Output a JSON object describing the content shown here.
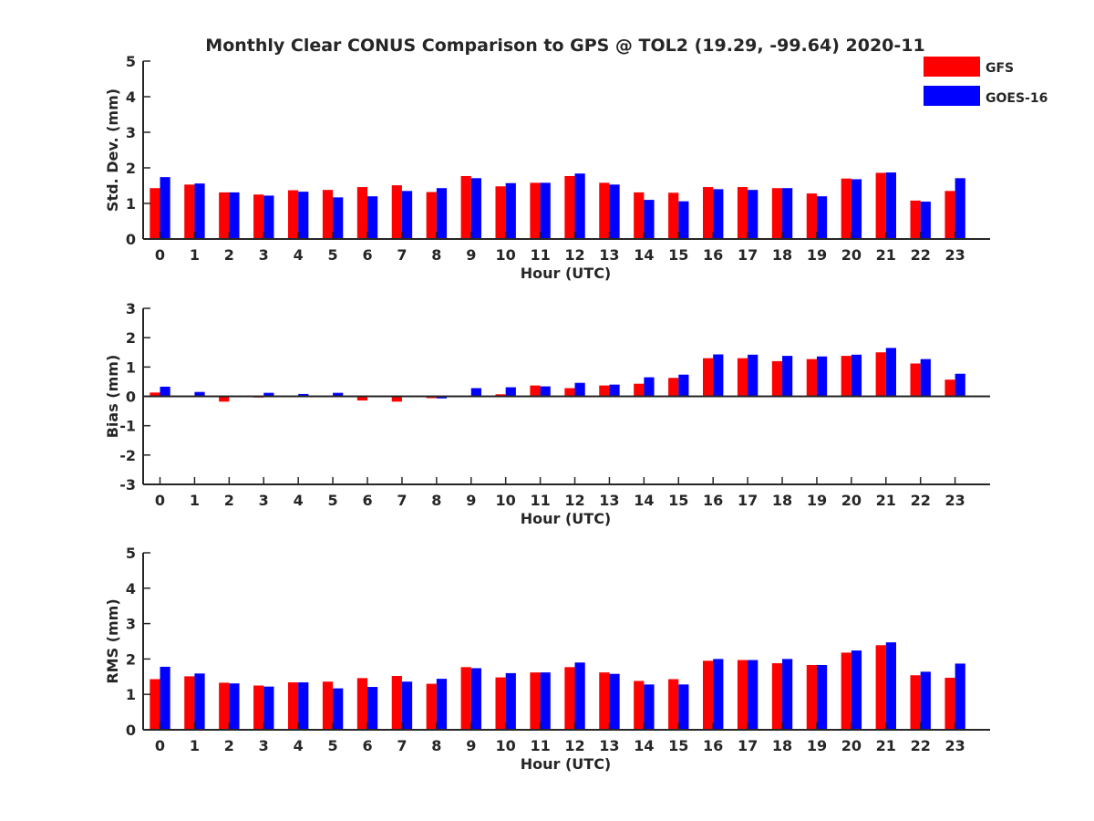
{
  "title": "Monthly Clear CONUS Comparison to GPS @ TOL2 (19.29, -99.64) 2020-11",
  "colors": {
    "GFS": "#ff0000",
    "GOES-16": "#0000ff",
    "axis": "#262626"
  },
  "legend": [
    {
      "name": "GFS",
      "color": "#ff0000"
    },
    {
      "name": "GOES-16",
      "color": "#0000ff"
    }
  ],
  "chart_data": [
    {
      "type": "bar",
      "ylabel": "Std. Dev. (mm)",
      "xlabel": "Hour (UTC)",
      "ylim": [
        0,
        5
      ],
      "yticks": [
        0,
        1,
        2,
        3,
        4,
        5
      ],
      "categories": [
        "0",
        "1",
        "2",
        "3",
        "4",
        "5",
        "6",
        "7",
        "8",
        "9",
        "10",
        "11",
        "12",
        "13",
        "14",
        "15",
        "16",
        "17",
        "18",
        "19",
        "20",
        "21",
        "22",
        "23"
      ],
      "series": [
        {
          "name": "GFS",
          "values": [
            1.43,
            1.53,
            1.31,
            1.25,
            1.37,
            1.38,
            1.46,
            1.51,
            1.32,
            1.77,
            1.48,
            1.58,
            1.77,
            1.58,
            1.31,
            1.3,
            1.46,
            1.46,
            1.43,
            1.28,
            1.7,
            1.86,
            1.08,
            1.35
          ]
        },
        {
          "name": "GOES-16",
          "values": [
            1.74,
            1.56,
            1.31,
            1.22,
            1.33,
            1.17,
            1.2,
            1.35,
            1.43,
            1.71,
            1.57,
            1.58,
            1.84,
            1.53,
            1.1,
            1.06,
            1.4,
            1.38,
            1.43,
            1.2,
            1.68,
            1.87,
            1.05,
            1.71
          ]
        }
      ]
    },
    {
      "type": "bar",
      "ylabel": "Bias (mm)",
      "xlabel": "Hour (UTC)",
      "ylim": [
        -3,
        3
      ],
      "yticks": [
        -3,
        -2,
        -1,
        0,
        1,
        2,
        3
      ],
      "categories": [
        "0",
        "1",
        "2",
        "3",
        "4",
        "5",
        "6",
        "7",
        "8",
        "9",
        "10",
        "11",
        "12",
        "13",
        "14",
        "15",
        "16",
        "17",
        "18",
        "19",
        "20",
        "21",
        "22",
        "23"
      ],
      "series": [
        {
          "name": "GFS",
          "values": [
            0.13,
            0.02,
            -0.18,
            -0.04,
            0.02,
            -0.02,
            -0.14,
            -0.18,
            -0.06,
            0.02,
            0.07,
            0.37,
            0.28,
            0.37,
            0.43,
            0.63,
            1.3,
            1.3,
            1.2,
            1.27,
            1.38,
            1.5,
            1.12,
            0.57
          ]
        },
        {
          "name": "GOES-16",
          "values": [
            0.33,
            0.15,
            0.0,
            0.12,
            0.08,
            0.12,
            0.0,
            0.0,
            -0.07,
            0.28,
            0.31,
            0.34,
            0.46,
            0.4,
            0.65,
            0.74,
            1.43,
            1.42,
            1.38,
            1.36,
            1.42,
            1.65,
            1.27,
            0.77
          ]
        }
      ]
    },
    {
      "type": "bar",
      "ylabel": "RMS (mm)",
      "xlabel": "Hour (UTC)",
      "ylim": [
        0,
        5
      ],
      "yticks": [
        0,
        1,
        2,
        3,
        4,
        5
      ],
      "categories": [
        "0",
        "1",
        "2",
        "3",
        "4",
        "5",
        "6",
        "7",
        "8",
        "9",
        "10",
        "11",
        "12",
        "13",
        "14",
        "15",
        "16",
        "17",
        "18",
        "19",
        "20",
        "21",
        "22",
        "23"
      ],
      "series": [
        {
          "name": "GFS",
          "values": [
            1.43,
            1.51,
            1.33,
            1.25,
            1.34,
            1.36,
            1.46,
            1.52,
            1.3,
            1.77,
            1.48,
            1.62,
            1.77,
            1.62,
            1.38,
            1.43,
            1.95,
            1.97,
            1.88,
            1.83,
            2.18,
            2.39,
            1.54,
            1.47
          ]
        },
        {
          "name": "GOES-16",
          "values": [
            1.78,
            1.59,
            1.31,
            1.22,
            1.34,
            1.17,
            1.21,
            1.36,
            1.44,
            1.74,
            1.6,
            1.62,
            1.9,
            1.58,
            1.28,
            1.28,
            2.0,
            1.97,
            2.0,
            1.83,
            2.24,
            2.47,
            1.64,
            1.87
          ]
        }
      ]
    }
  ]
}
